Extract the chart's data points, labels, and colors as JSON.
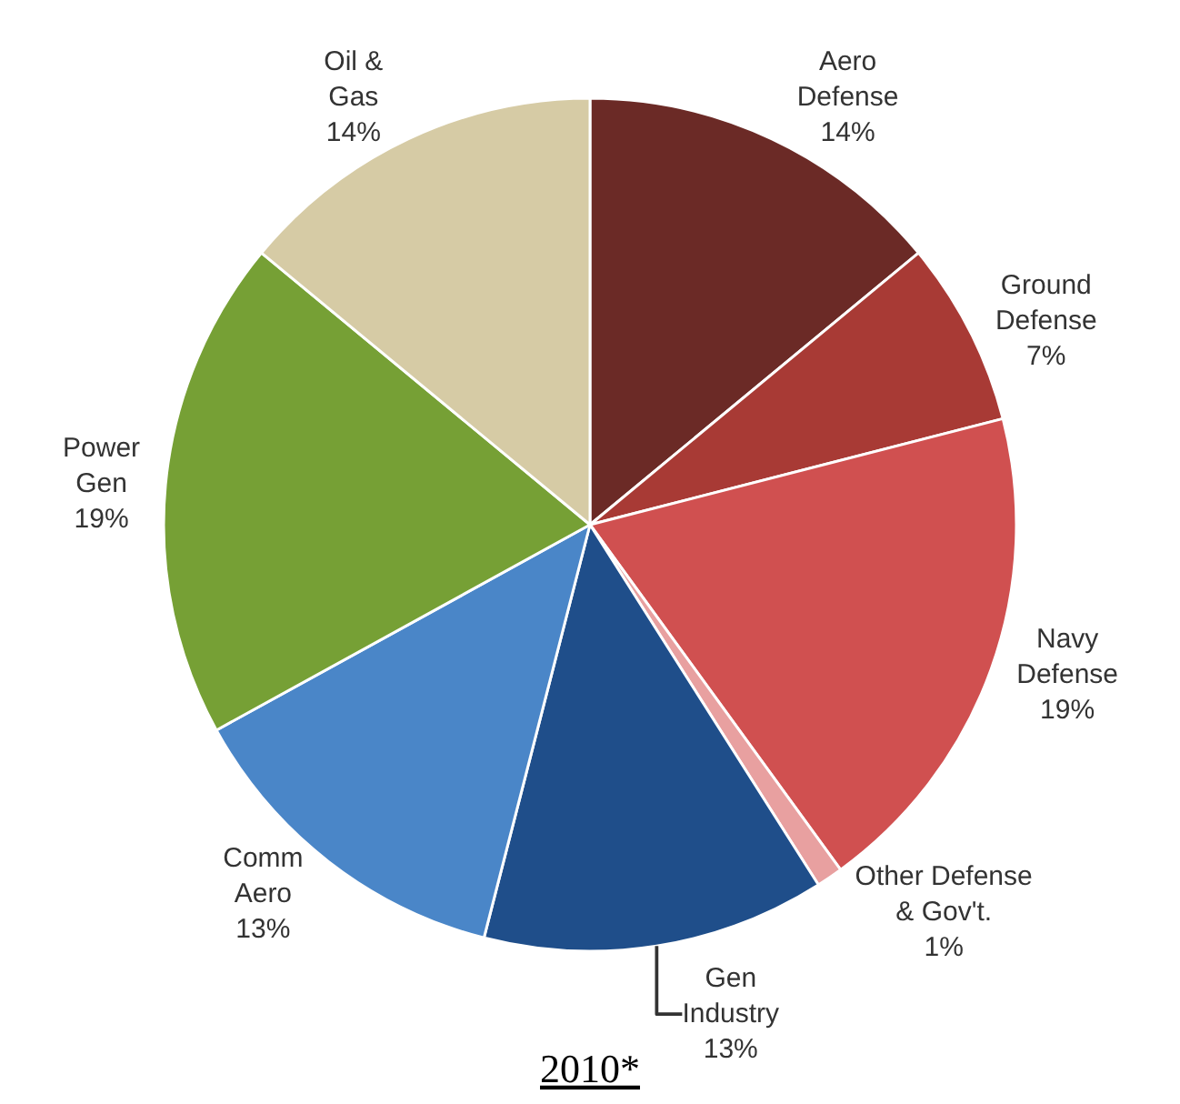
{
  "chart_data": {
    "type": "pie",
    "title": "2010*",
    "categories": [
      "Aero Defense",
      "Ground Defense",
      "Navy Defense",
      "Other Defense & Gov't.",
      "Gen Industry",
      "Comm Aero",
      "Power Gen",
      "Oil & Gas"
    ],
    "values": [
      14,
      7,
      19,
      1,
      13,
      13,
      19,
      14
    ],
    "value_labels": [
      "14%",
      "7%",
      "19%",
      "1%",
      "13%",
      "13%",
      "19%",
      "14%"
    ],
    "colors": [
      "#6b2a26",
      "#a83a35",
      "#d05050",
      "#e8a0a0",
      "#1f4e8a",
      "#4a86c8",
      "#76a035",
      "#d6cba5"
    ],
    "legend": false
  }
}
